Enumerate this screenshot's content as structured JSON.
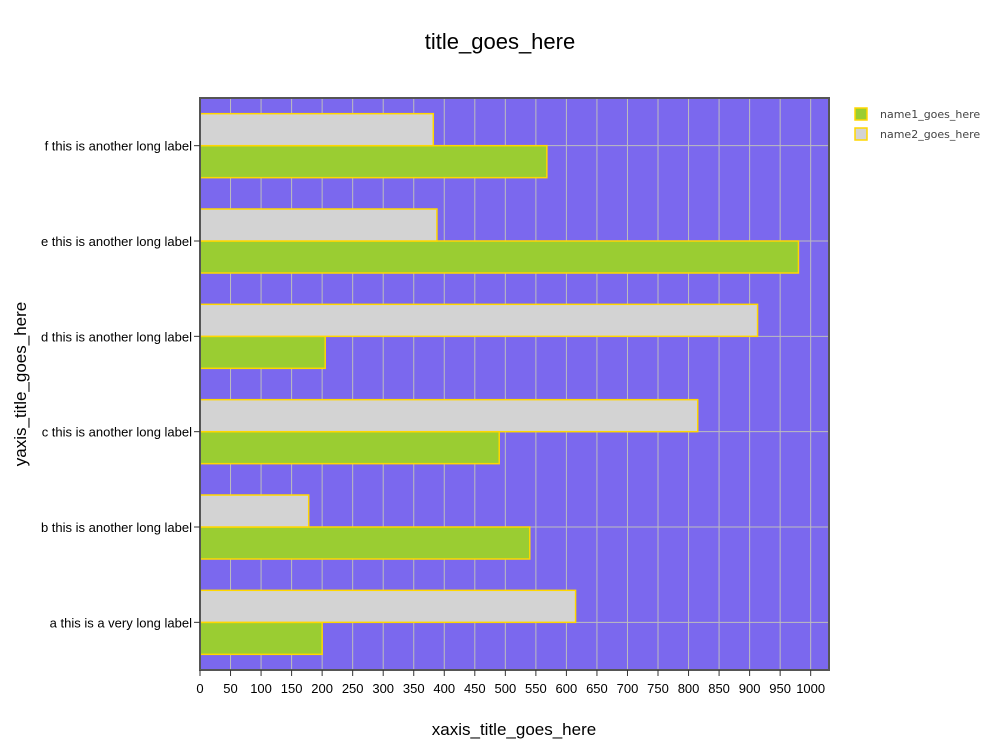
{
  "chart_data": {
    "type": "bar",
    "orientation": "horizontal",
    "title": "title_goes_here",
    "xlabel": "xaxis_title_goes_here",
    "ylabel": "yaxis_title_goes_here",
    "categories": [
      "a this is a very long label",
      "b this is another long label",
      "c this is another long label",
      "d this is another long label",
      "e this is another long label",
      "f this is another long label"
    ],
    "series": [
      {
        "name": "name1_goes_here",
        "color": "#9acd32",
        "values": [
          200,
          540,
          490,
          205,
          980,
          568
        ]
      },
      {
        "name": "name2_goes_here",
        "color": "#d3d3d3",
        "values": [
          615,
          178,
          815,
          913,
          388,
          382
        ]
      }
    ],
    "bar_outline_color": "#ffd700",
    "plot_background": "#7b68ee",
    "grid_color": "#bdbdbd",
    "grid": true,
    "xlim": [
      0,
      1030
    ],
    "xticks": [
      0,
      50,
      100,
      150,
      200,
      250,
      300,
      350,
      400,
      450,
      500,
      550,
      600,
      650,
      700,
      750,
      800,
      850,
      900,
      950,
      1000
    ],
    "legend_position": "top-right"
  }
}
